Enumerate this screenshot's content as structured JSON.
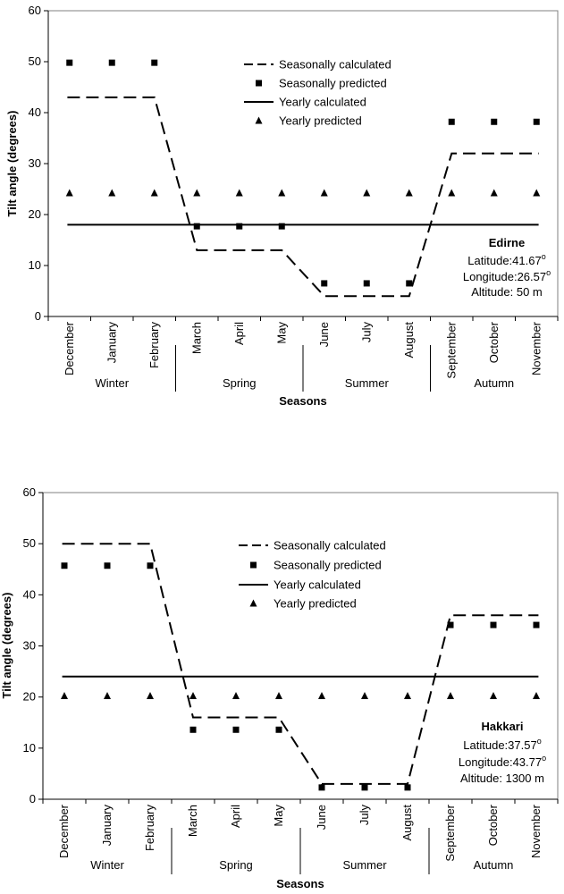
{
  "chart_data": [
    {
      "type": "line",
      "station": {
        "name": "Edirne",
        "latitude_label": "Latitude:41.67",
        "longitude_label": "Longitude:26.57",
        "degree_mark": "o",
        "altitude_label": "Altitude: 50 m"
      },
      "xlabel": "Seasons",
      "ylabel": "Tilt angle (degrees)",
      "ylim": [
        0,
        60
      ],
      "yticks": [
        0,
        10,
        20,
        30,
        40,
        50,
        60
      ],
      "grid": false,
      "legend_position": "upper-center",
      "categories": [
        "December",
        "January",
        "February",
        "March",
        "April",
        "May",
        "June",
        "July",
        "August",
        "September",
        "October",
        "November"
      ],
      "season_groups": [
        "Winter",
        "Spring",
        "Summer",
        "Autumn"
      ],
      "series": [
        {
          "name": "Seasonally calculated",
          "style": "dashed-line",
          "values": [
            43,
            43,
            43,
            13,
            13,
            13,
            4,
            4,
            4,
            32,
            32,
            32
          ]
        },
        {
          "name": "Seasonally predicted",
          "style": "square-marker",
          "values": [
            49.8,
            49.8,
            49.8,
            17.7,
            17.7,
            17.7,
            6.5,
            6.5,
            6.5,
            38.2,
            38.2,
            38.2
          ]
        },
        {
          "name": "Yearly calculated",
          "style": "solid-line",
          "values": [
            18,
            18,
            18,
            18,
            18,
            18,
            18,
            18,
            18,
            18,
            18,
            18
          ]
        },
        {
          "name": "Yearly predicted",
          "style": "triangle-marker",
          "values": [
            24.2,
            24.2,
            24.2,
            24.2,
            24.2,
            24.2,
            24.2,
            24.2,
            24.2,
            24.2,
            24.2,
            24.2
          ]
        }
      ]
    },
    {
      "type": "line",
      "station": {
        "name": "Hakkari",
        "latitude_label": "Latitude:37.57",
        "longitude_label": "Longitude:43.77",
        "degree_mark": "o",
        "altitude_label": "Altitude: 1300 m"
      },
      "xlabel": "Seasons",
      "ylabel": "Tilt angle (degrees)",
      "ylim": [
        0,
        60
      ],
      "yticks": [
        0,
        10,
        20,
        30,
        40,
        50,
        60
      ],
      "grid": false,
      "legend_position": "upper-center",
      "categories": [
        "December",
        "January",
        "February",
        "March",
        "April",
        "May",
        "June",
        "July",
        "August",
        "September",
        "October",
        "November"
      ],
      "season_groups": [
        "Winter",
        "Spring",
        "Summer",
        "Autumn"
      ],
      "series": [
        {
          "name": "Seasonally calculated",
          "style": "dashed-line",
          "values": [
            50,
            50,
            50,
            16,
            16,
            16,
            3,
            3,
            3,
            36,
            36,
            36
          ]
        },
        {
          "name": "Seasonally predicted",
          "style": "square-marker",
          "values": [
            45.7,
            45.7,
            45.7,
            13.6,
            13.6,
            13.6,
            2.3,
            2.3,
            2.3,
            34.1,
            34.1,
            34.1
          ]
        },
        {
          "name": "Yearly calculated",
          "style": "solid-line",
          "values": [
            24,
            24,
            24,
            24,
            24,
            24,
            24,
            24,
            24,
            24,
            24,
            24
          ]
        },
        {
          "name": "Yearly predicted",
          "style": "triangle-marker",
          "values": [
            20.2,
            20.2,
            20.2,
            20.2,
            20.2,
            20.2,
            20.2,
            20.2,
            20.2,
            20.2,
            20.2,
            20.2
          ]
        }
      ]
    }
  ]
}
